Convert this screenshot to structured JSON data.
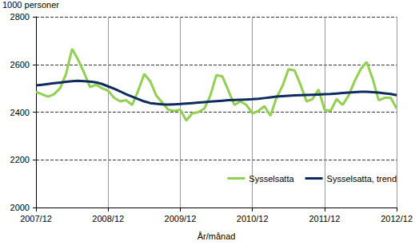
{
  "chart_data": {
    "type": "line",
    "y_label": "1000 personer",
    "x_label": "År/månad",
    "categories": [
      "2007/12",
      null,
      null,
      null,
      null,
      null,
      null,
      null,
      null,
      null,
      null,
      null,
      "2008/12",
      null,
      null,
      null,
      null,
      null,
      null,
      null,
      null,
      null,
      null,
      null,
      "2009/12",
      null,
      null,
      null,
      null,
      null,
      null,
      null,
      null,
      null,
      null,
      null,
      "2010/12",
      null,
      null,
      null,
      null,
      null,
      null,
      null,
      null,
      null,
      null,
      null,
      "2011/12",
      null,
      null,
      null,
      null,
      null,
      null,
      null,
      null,
      null,
      null,
      null,
      "2012/12"
    ],
    "series": [
      {
        "name": "Sysselsatta",
        "color": "#92d050",
        "values": [
          2485,
          2475,
          2465,
          2475,
          2500,
          2560,
          2665,
          2620,
          2565,
          2505,
          2515,
          2500,
          2490,
          2460,
          2445,
          2450,
          2430,
          2490,
          2560,
          2530,
          2470,
          2440,
          2410,
          2405,
          2410,
          2365,
          2395,
          2400,
          2415,
          2470,
          2555,
          2550,
          2490,
          2430,
          2445,
          2430,
          2395,
          2405,
          2425,
          2385,
          2460,
          2510,
          2580,
          2575,
          2515,
          2445,
          2455,
          2495,
          2410,
          2405,
          2455,
          2430,
          2470,
          2530,
          2580,
          2610,
          2540,
          2450,
          2460,
          2460,
          2415
        ]
      },
      {
        "name": "Sysselsatta, trend",
        "color": "#0d2b5e",
        "values": [
          2512,
          2515,
          2518,
          2521,
          2524,
          2527,
          2530,
          2531,
          2530,
          2528,
          2525,
          2518,
          2508,
          2498,
          2487,
          2475,
          2465,
          2455,
          2445,
          2438,
          2435,
          2433,
          2432,
          2433,
          2434,
          2436,
          2438,
          2440,
          2442,
          2444,
          2446,
          2448,
          2450,
          2451,
          2452,
          2453,
          2454,
          2456,
          2459,
          2462,
          2465,
          2467,
          2469,
          2470,
          2471,
          2472,
          2473,
          2474,
          2475,
          2476,
          2478,
          2480,
          2482,
          2484,
          2485,
          2485,
          2484,
          2482,
          2479,
          2476,
          2471
        ]
      }
    ],
    "ylim": [
      2000,
      2800
    ],
    "yticks": [
      2000,
      2200,
      2400,
      2600,
      2800
    ],
    "grid": true,
    "legend": "lower right"
  }
}
